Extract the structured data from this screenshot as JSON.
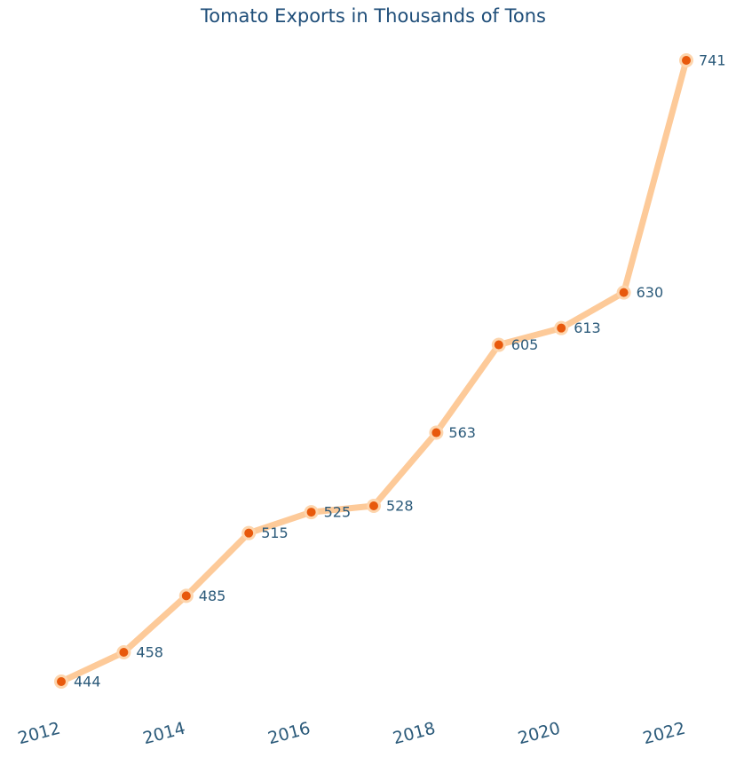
{
  "chart_data": {
    "type": "line",
    "title": "Tomato Exports in Thousands of Tons",
    "xlabel": "",
    "ylabel": "",
    "x": [
      2012,
      2013,
      2014,
      2015,
      2016,
      2017,
      2018,
      2019,
      2020,
      2021,
      2022
    ],
    "values": [
      444,
      458,
      485,
      515,
      525,
      528,
      563,
      605,
      613,
      630,
      741
    ],
    "x_tick_labels": [
      "2012",
      "2014",
      "2016",
      "2018",
      "2020",
      "2022"
    ],
    "xlim": [
      2012,
      2022
    ],
    "ylim": [
      444,
      741
    ],
    "grid": false,
    "legend": "none",
    "data_labels": true,
    "colors": {
      "line": "#fdca99",
      "marker_fill": "#e8590c",
      "marker_edge": "#fdd5ad",
      "text": "#2b5a7a",
      "title": "#1f4e79"
    }
  }
}
